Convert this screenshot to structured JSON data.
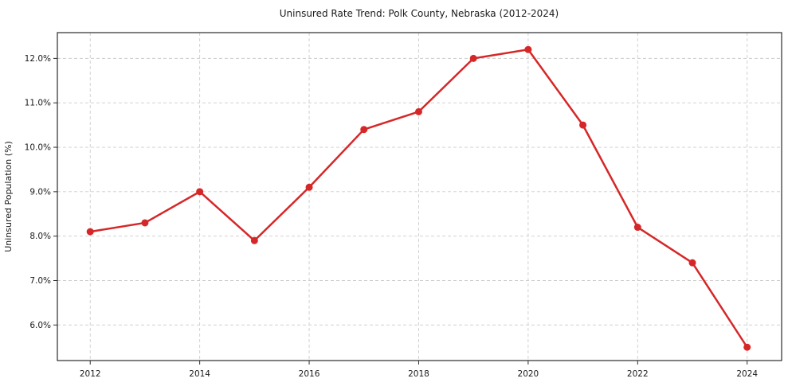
{
  "figure": {
    "title": "Uninsured Rate Trend: Polk County, Nebraska (2012-2024)"
  },
  "chart_data": {
    "type": "line",
    "title": "Uninsured Rate Trend: Polk County, Nebraska (2012-2024)",
    "xlabel": "",
    "ylabel": "Uninsured Population (%)",
    "x": [
      2012,
      2013,
      2014,
      2015,
      2016,
      2017,
      2018,
      2019,
      2020,
      2021,
      2022,
      2023,
      2024
    ],
    "series": [
      {
        "name": "Uninsured Rate",
        "values": [
          8.1,
          8.3,
          9.0,
          7.9,
          9.1,
          10.4,
          10.8,
          12.0,
          12.2,
          10.5,
          8.2,
          7.4,
          5.5
        ]
      }
    ],
    "xticks": [
      2012,
      2014,
      2016,
      2018,
      2020,
      2022,
      2024
    ],
    "xtick_labels": [
      "2012",
      "2014",
      "2016",
      "2018",
      "2020",
      "2022",
      "2024"
    ],
    "yticks": [
      6,
      7,
      8,
      9,
      10,
      11,
      12
    ],
    "ytick_labels": [
      "6.0%",
      "7.0%",
      "8.0%",
      "9.0%",
      "10.0%",
      "11.0%",
      "12.0%"
    ],
    "xlim": [
      2011.4,
      2024.63
    ],
    "ylim": [
      5.2,
      12.58
    ],
    "grid": true,
    "grid_style": "dashed",
    "legend": "none",
    "colors": {
      "line": "#d62728",
      "marker": "#d62728",
      "grid": "#cccccc",
      "axis_border": "#2b2b2b",
      "text": "#1a1a1a",
      "background": "#ffffff"
    },
    "marker": "circle"
  }
}
